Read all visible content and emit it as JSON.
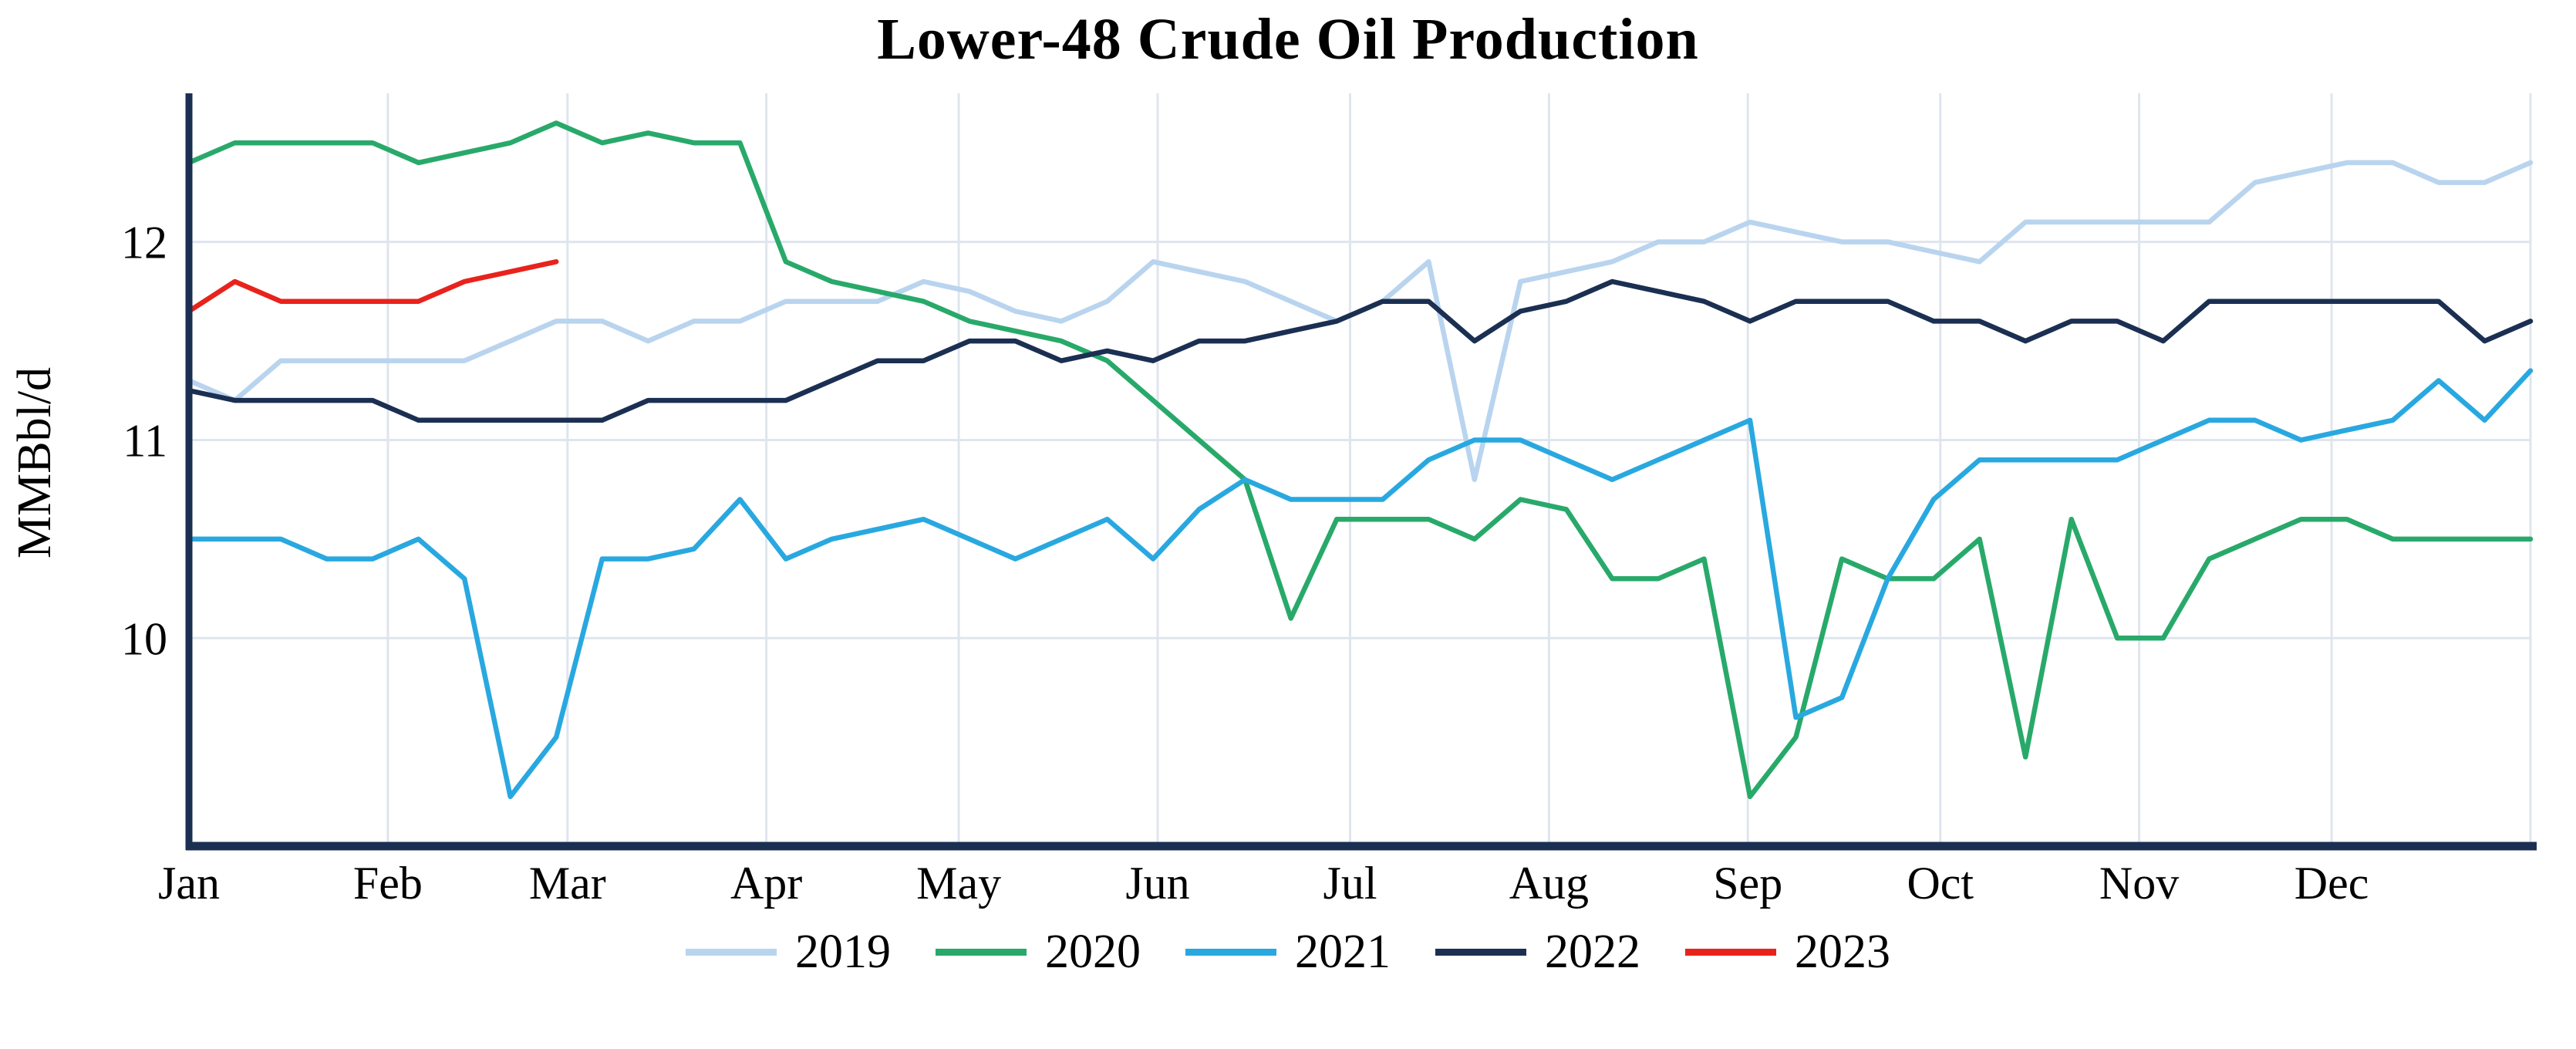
{
  "chart_data": {
    "type": "line",
    "title": "Lower-48 Crude Oil Production",
    "ylabel": "MMBbl/d",
    "xlabel": "",
    "x_unit": "week-of-year",
    "weeks_per_year": 52,
    "days_per_year": 365,
    "x_tick_labels": [
      "Jan",
      "Feb",
      "Mar",
      "Apr",
      "May",
      "Jun",
      "Jul",
      "Aug",
      "Sep",
      "Oct",
      "Nov",
      "Dec"
    ],
    "month_start_days": [
      0,
      31,
      59,
      90,
      120,
      151,
      181,
      212,
      243,
      273,
      304,
      334
    ],
    "y_ticks": [
      10,
      11,
      12
    ],
    "y_tick_labels": [
      "10",
      "11",
      "12"
    ],
    "ylim": [
      8.95,
      12.75
    ],
    "grid": true,
    "grid_color": "#dfe5ee",
    "axis_color": "#1b2f52",
    "legend_position": "bottom",
    "series": [
      {
        "name": "2019",
        "color": "#b9d4ee",
        "values": [
          11.3,
          11.2,
          11.4,
          11.4,
          11.4,
          11.4,
          11.4,
          11.5,
          11.6,
          11.6,
          11.5,
          11.6,
          11.6,
          11.7,
          11.7,
          11.7,
          11.8,
          11.75,
          11.65,
          11.6,
          11.7,
          11.9,
          11.85,
          11.8,
          11.7,
          11.6,
          11.7,
          11.9,
          10.8,
          11.8,
          11.85,
          11.9,
          12.0,
          12.0,
          12.1,
          12.05,
          12.0,
          12.0,
          11.95,
          11.9,
          12.1,
          12.1,
          12.1,
          12.1,
          12.1,
          12.3,
          12.35,
          12.4,
          12.4,
          12.3,
          12.3,
          12.4
        ]
      },
      {
        "name": "2020",
        "color": "#28a96a",
        "values": [
          12.4,
          12.5,
          12.5,
          12.5,
          12.5,
          12.4,
          12.45,
          12.5,
          12.6,
          12.5,
          12.55,
          12.5,
          12.5,
          11.9,
          11.8,
          11.75,
          11.7,
          11.6,
          11.55,
          11.5,
          11.4,
          11.2,
          11.0,
          10.8,
          10.1,
          10.6,
          10.6,
          10.6,
          10.5,
          10.7,
          10.65,
          10.3,
          10.3,
          10.4,
          9.2,
          9.5,
          10.4,
          10.3,
          10.3,
          10.5,
          9.4,
          10.6,
          10.0,
          10.0,
          10.4,
          10.5,
          10.6,
          10.6,
          10.5,
          10.5,
          10.5,
          10.5
        ]
      },
      {
        "name": "2021",
        "color": "#29a8e0",
        "values": [
          10.5,
          10.5,
          10.5,
          10.4,
          10.4,
          10.5,
          10.3,
          9.2,
          9.5,
          10.4,
          10.4,
          10.45,
          10.7,
          10.4,
          10.5,
          10.55,
          10.6,
          10.5,
          10.4,
          10.5,
          10.6,
          10.4,
          10.65,
          10.8,
          10.7,
          10.7,
          10.7,
          10.9,
          11.0,
          11.0,
          10.9,
          10.8,
          10.9,
          11.0,
          11.1,
          9.6,
          9.7,
          10.3,
          10.7,
          10.9,
          10.9,
          10.9,
          10.9,
          11.0,
          11.1,
          11.1,
          11.0,
          11.05,
          11.1,
          11.3,
          11.1,
          11.35
        ]
      },
      {
        "name": "2022",
        "color": "#1b2f52",
        "values": [
          11.25,
          11.2,
          11.2,
          11.2,
          11.2,
          11.1,
          11.1,
          11.1,
          11.1,
          11.1,
          11.2,
          11.2,
          11.2,
          11.2,
          11.3,
          11.4,
          11.4,
          11.5,
          11.5,
          11.4,
          11.45,
          11.4,
          11.5,
          11.5,
          11.55,
          11.6,
          11.7,
          11.7,
          11.5,
          11.65,
          11.7,
          11.8,
          11.75,
          11.7,
          11.6,
          11.7,
          11.7,
          11.7,
          11.6,
          11.6,
          11.5,
          11.6,
          11.6,
          11.5,
          11.7,
          11.7,
          11.7,
          11.7,
          11.7,
          11.7,
          11.5,
          11.6
        ]
      },
      {
        "name": "2023",
        "color": "#e8231c",
        "values": [
          11.65,
          11.8,
          11.7,
          11.7,
          11.7,
          11.7,
          11.8,
          11.85,
          11.9
        ]
      }
    ]
  }
}
